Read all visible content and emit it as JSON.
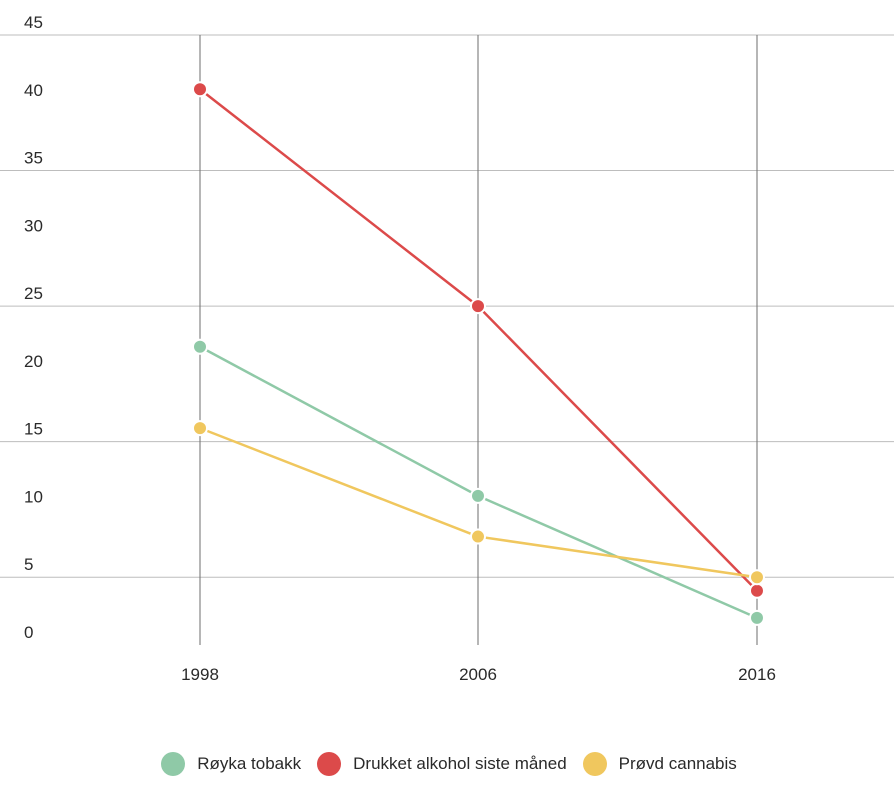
{
  "chart_data": {
    "type": "line",
    "title": "",
    "xlabel": "",
    "ylabel": "",
    "categories": [
      "1998",
      "2006",
      "2016"
    ],
    "ylim": [
      0,
      45
    ],
    "yticks": [
      0,
      5,
      10,
      15,
      20,
      25,
      30,
      35,
      40,
      45
    ],
    "grid": true,
    "legend_position": "bottom",
    "series": [
      {
        "name": "Røyka tobakk",
        "color": "#8fc9a7",
        "values": [
          22,
          11,
          2
        ]
      },
      {
        "name": "Drukket alkohol siste måned",
        "color": "#dc4a4a",
        "values": [
          41,
          25,
          4
        ]
      },
      {
        "name": "Prøvd cannabis",
        "color": "#f0c75e",
        "values": [
          16,
          8,
          5
        ]
      }
    ]
  }
}
